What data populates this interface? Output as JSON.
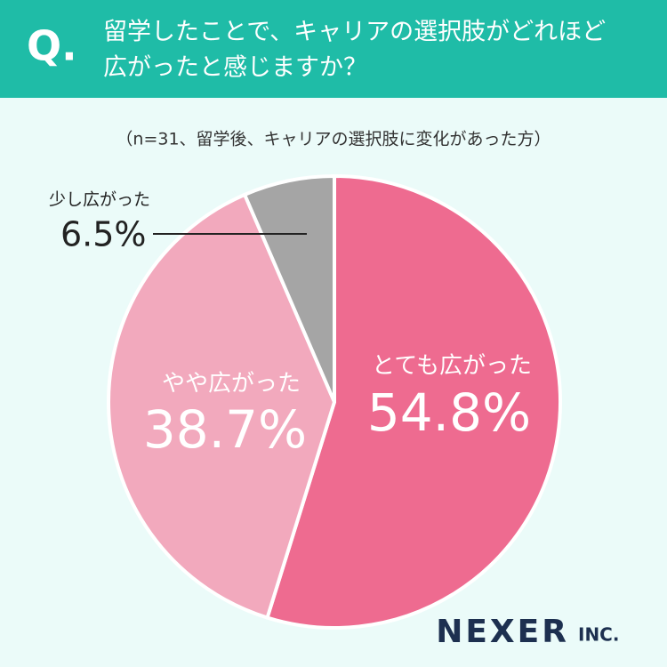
{
  "chart_data": {
    "type": "pie",
    "q_label": "Q.",
    "title": [
      "留学したことで、キャリアの選択肢がどれほど",
      "広がったと感じますか？"
    ],
    "subtitle": "（n=31、留学後、キャリアの選択肢に変化があった方）",
    "categories": [
      "とても広がった",
      "やや広がった",
      "少し広がった"
    ],
    "values": [
      54.8,
      38.7,
      6.5
    ],
    "value_labels": [
      "54.8%",
      "38.7%",
      "6.5%"
    ],
    "colors": [
      "#ee6b90",
      "#f2a9bd",
      "#a5a5a5"
    ],
    "brand": {
      "name": "NEXER",
      "suffix": "INC."
    }
  }
}
